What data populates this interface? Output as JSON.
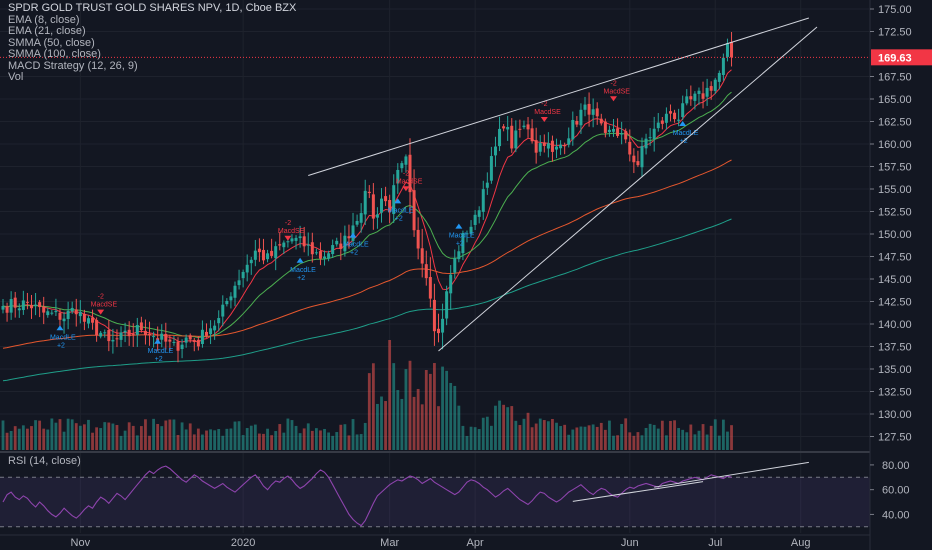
{
  "legend": {
    "title": "SPDR GOLD TRUST GOLD SHARES NPV, 1D, Cboe BZX",
    "studies": [
      "EMA (8, close)",
      "EMA (21, close)",
      "SMMA (50, close)",
      "SMMA (100, close)",
      "MACD Strategy (12, 26, 9)",
      "Vol"
    ]
  },
  "rsi_label": "RSI (14, close)",
  "colors": {
    "background": "#131722",
    "up": "#26a69a",
    "down": "#ef5350",
    "ema8": "#f23645",
    "ema21": "#4caf50",
    "smma50": "#e4572e",
    "smma100": "#1f9e89",
    "rsi": "#8e44ad",
    "trendline": "#d1d4dc",
    "price_tag": "#f23645",
    "signal_long": "#2196f3",
    "signal_short": "#f23645"
  },
  "chart_data": [
    {
      "type": "candlestick",
      "title": "SPDR GOLD TRUST GOLD SHARES NPV, 1D, Cboe BZX",
      "x_ticks": [
        "Nov",
        "2020",
        "Mar",
        "Apr",
        "Jun",
        "Jul",
        "Aug"
      ],
      "y_ticks": [
        "127.50",
        "130.00",
        "132.50",
        "135.00",
        "137.50",
        "140.00",
        "142.50",
        "145.00",
        "147.50",
        "150.00",
        "152.50",
        "155.00",
        "157.50",
        "160.00",
        "162.50",
        "165.00",
        "167.50",
        "172.50",
        "175.00"
      ],
      "ylim": [
        126,
        176
      ],
      "last_price": "169.63",
      "grid": true,
      "close_anchors": [
        [
          0,
          142.0
        ],
        [
          6,
          142.3
        ],
        [
          10,
          141.2
        ],
        [
          15,
          140.8
        ],
        [
          18,
          141.8
        ],
        [
          20,
          140.3
        ],
        [
          24,
          139.0
        ],
        [
          26,
          137.8
        ],
        [
          30,
          138.6
        ],
        [
          34,
          139.6
        ],
        [
          38,
          138.5
        ],
        [
          42,
          137.4
        ],
        [
          45,
          138.4
        ],
        [
          48,
          138.0
        ],
        [
          50,
          139.4
        ],
        [
          53,
          140.4
        ],
        [
          56,
          143.6
        ],
        [
          59,
          146.0
        ],
        [
          62,
          148.1
        ],
        [
          65,
          147.2
        ],
        [
          68,
          148.5
        ],
        [
          71,
          149.5
        ],
        [
          74,
          148.8
        ],
        [
          78,
          147.5
        ],
        [
          81,
          148.3
        ],
        [
          84,
          149.3
        ],
        [
          87,
          152.0
        ],
        [
          90,
          155.0
        ],
        [
          91,
          151.5
        ],
        [
          93,
          154.0
        ],
        [
          95,
          153.0
        ],
        [
          97,
          156.5
        ],
        [
          99,
          158.0
        ],
        [
          101,
          150.0
        ],
        [
          103,
          147.5
        ],
        [
          105,
          143.5
        ],
        [
          106,
          140.0
        ],
        [
          107,
          138.8
        ],
        [
          108,
          141.0
        ],
        [
          110,
          145.5
        ],
        [
          112,
          148.5
        ],
        [
          114,
          150.5
        ],
        [
          116,
          151.5
        ],
        [
          118,
          155.0
        ],
        [
          121,
          159.5
        ],
        [
          123,
          162.5
        ],
        [
          125,
          160.0
        ],
        [
          127,
          161.5
        ],
        [
          129,
          162.0
        ],
        [
          131,
          159.5
        ],
        [
          133,
          160.5
        ],
        [
          135,
          158.8
        ],
        [
          138,
          160.5
        ],
        [
          140,
          162.0
        ],
        [
          142,
          163.5
        ],
        [
          144,
          164.0
        ],
        [
          146,
          162.5
        ],
        [
          148,
          160.5
        ],
        [
          150,
          161.8
        ],
        [
          152,
          160.8
        ],
        [
          154,
          159.0
        ],
        [
          156,
          157.8
        ],
        [
          158,
          160.5
        ],
        [
          160,
          161.5
        ],
        [
          162,
          162.5
        ],
        [
          164,
          163.5
        ],
        [
          166,
          163.0
        ],
        [
          168,
          164.5
        ],
        [
          170,
          165.0
        ],
        [
          172,
          165.5
        ],
        [
          174,
          166.5
        ],
        [
          176,
          167.8
        ],
        [
          178,
          170.5
        ],
        [
          179,
          169.63
        ]
      ],
      "trendlines": [
        {
          "name": "wedge-upper",
          "from": [
            75,
            156.5
          ],
          "to": [
            198,
            174.0
          ]
        },
        {
          "name": "wedge-lower",
          "from": [
            107,
            137.0
          ],
          "to": [
            200,
            173.0
          ]
        }
      ],
      "signals": [
        {
          "label": "MacdLE",
          "bar": 14,
          "count": "+2",
          "dir": "long",
          "price": 139.3
        },
        {
          "label": "MacdSE",
          "bar": 24,
          "count": "-2",
          "dir": "short",
          "price": 141.6
        },
        {
          "label": "MacdLE",
          "bar": 38,
          "count": "+2",
          "dir": "long",
          "price": 137.8
        },
        {
          "label": "MacdLE",
          "bar": 73,
          "count": "+2",
          "dir": "long",
          "price": 146.8
        },
        {
          "label": "MacdSE",
          "bar": 70,
          "count": "-2",
          "dir": "short",
          "price": 149.8
        },
        {
          "label": "MacdLE",
          "bar": 86,
          "count": "+2",
          "dir": "long",
          "price": 149.6
        },
        {
          "label": "MacdLE",
          "bar": 97,
          "count": "+2",
          "dir": "long",
          "price": 153.4
        },
        {
          "label": "MacdSE",
          "bar": 99,
          "count": "-2",
          "dir": "short",
          "price": 155.3
        },
        {
          "label": "MacdLE",
          "bar": 112,
          "count": "+2",
          "dir": "long",
          "price": 150.6
        },
        {
          "label": "MacdSE",
          "bar": 133,
          "count": "-2",
          "dir": "short",
          "price": 163.0
        },
        {
          "label": "MacdSE",
          "bar": 150,
          "count": "-2",
          "dir": "short",
          "price": 165.3
        },
        {
          "label": "MacdLE",
          "bar": 167,
          "count": "+2",
          "dir": "long",
          "price": 162.0
        }
      ]
    },
    {
      "type": "line",
      "title": "RSI (14, close)",
      "y_ticks": [
        "80.00",
        "60.00",
        "40.00"
      ],
      "ylim": [
        25,
        88
      ],
      "band": [
        30,
        70
      ],
      "values": [
        50,
        56,
        58,
        54,
        52,
        55,
        53,
        49,
        46,
        50,
        47,
        43,
        40,
        38,
        41,
        45,
        42,
        39,
        37,
        40,
        44,
        47,
        45,
        50,
        54,
        52,
        49,
        53,
        57,
        55,
        52,
        56,
        60,
        64,
        68,
        72,
        75,
        73,
        76,
        78,
        79,
        77,
        74,
        71,
        68,
        66,
        69,
        72,
        70,
        67,
        65,
        63,
        61,
        63,
        65,
        62,
        60,
        58,
        61,
        64,
        67,
        70,
        72,
        68,
        63,
        60,
        64,
        67,
        66,
        69,
        71,
        68,
        64,
        61,
        63,
        66,
        69,
        73,
        76,
        74,
        70,
        64,
        58,
        52,
        46,
        40,
        36,
        33,
        31,
        35,
        42,
        49,
        55,
        58,
        61,
        64,
        66,
        68,
        67,
        69,
        71,
        70,
        68,
        65,
        67,
        69,
        66,
        64,
        62,
        60,
        58,
        56,
        58,
        62,
        66,
        68,
        67,
        65,
        62,
        60,
        57,
        54,
        56,
        59,
        61,
        58,
        55,
        52,
        50,
        48,
        51,
        55,
        58,
        57,
        54,
        52,
        50,
        52,
        55,
        58,
        60,
        62,
        64,
        61,
        58,
        56,
        59,
        61,
        60,
        57,
        55,
        54,
        57,
        60,
        62,
        61,
        63,
        64,
        65,
        64,
        63,
        62,
        65,
        66,
        67,
        66,
        65,
        67,
        68,
        69,
        70,
        69,
        68,
        70,
        72,
        71,
        70,
        69,
        71,
        70
      ],
      "trendlines": [
        {
          "name": "rsi-lower-trend",
          "from": [
            140,
            50.5
          ],
          "to": [
            172,
            66.5
          ]
        },
        {
          "name": "rsi-upper-trend",
          "from": [
            160,
            62.0
          ],
          "to": [
            198,
            82.0
          ]
        }
      ]
    }
  ]
}
